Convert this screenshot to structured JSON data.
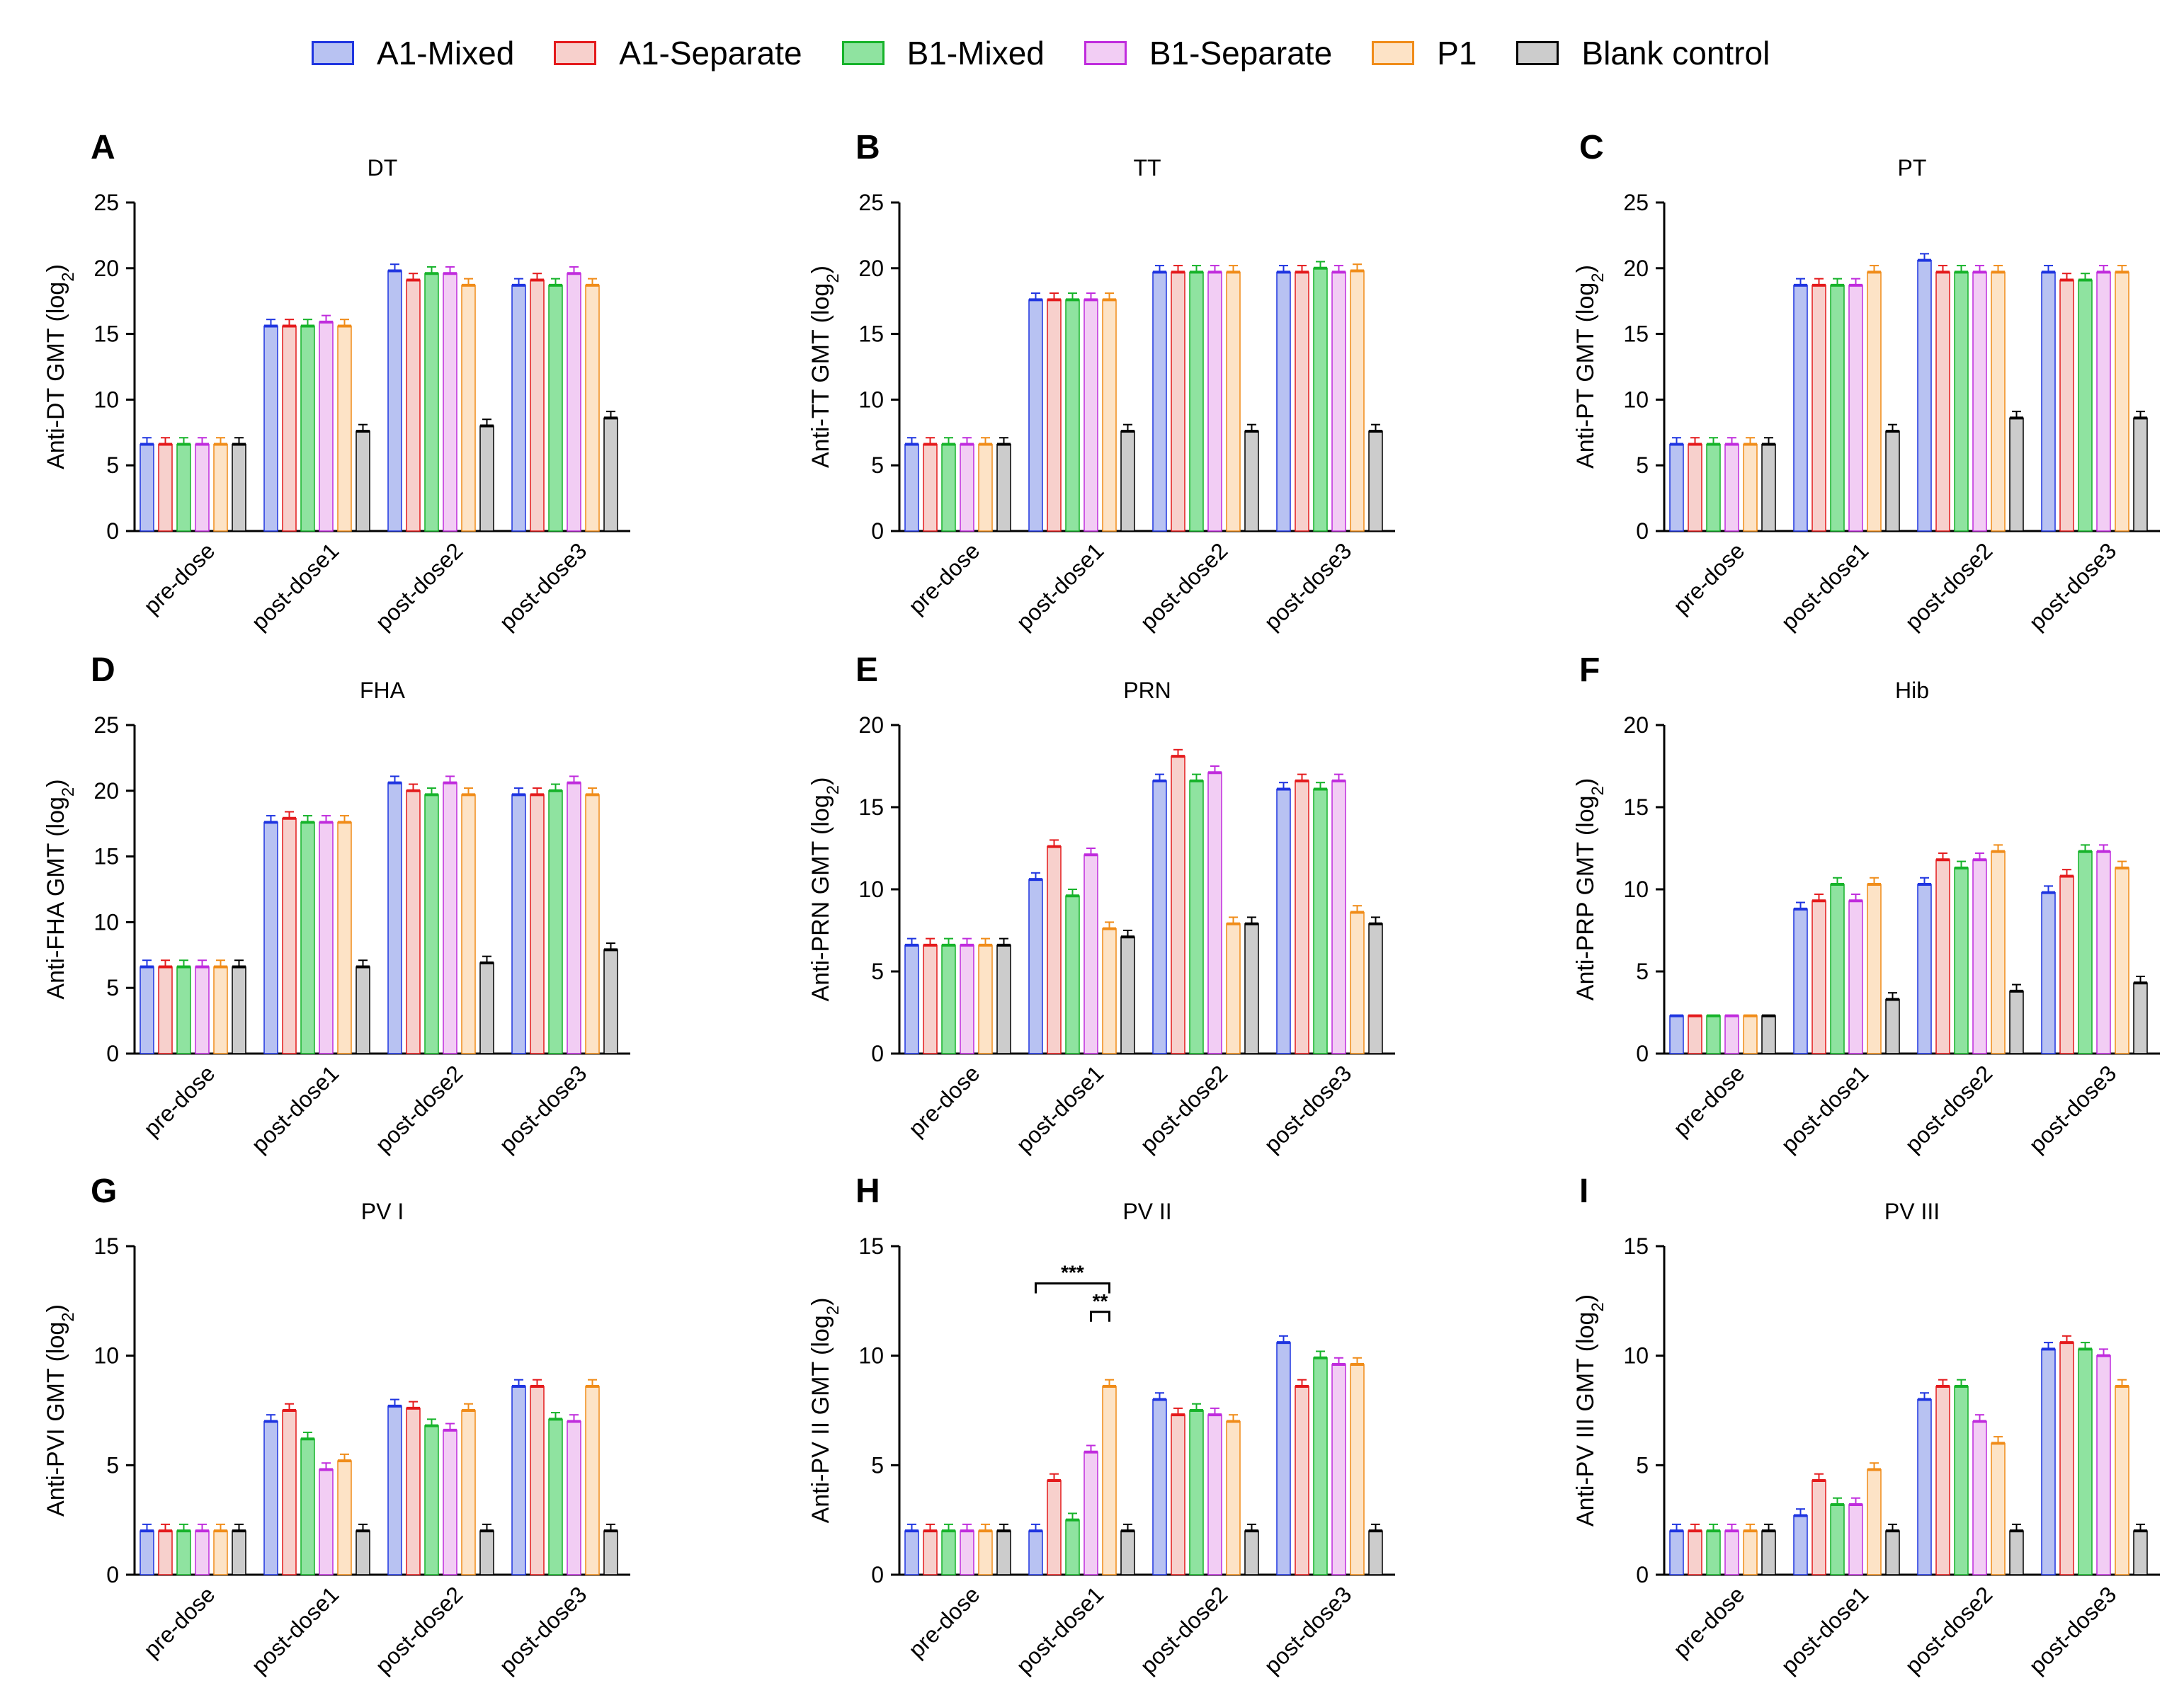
{
  "legend": {
    "groups": [
      "A1-Mixed",
      "A1-Separate",
      "B1-Mixed",
      "B1-Separate",
      "P1",
      "Blank control"
    ]
  },
  "colors": {
    "edge": [
      "#1f35e0",
      "#e41a1c",
      "#16b32a",
      "#c02cdd",
      "#f08c19",
      "#000000"
    ],
    "fill": [
      "#b8c2f2",
      "#f7d0cc",
      "#8fe3a0",
      "#f2cdf4",
      "#fde3c6",
      "#cccccc"
    ]
  },
  "chart_data": [
    {
      "panel": "A",
      "title": "DT",
      "type": "bar",
      "ylabel": "Anti-DT GMT (log2)",
      "ylim": [
        0,
        25
      ],
      "yticks": [
        0,
        5,
        10,
        15,
        20,
        25
      ],
      "categories": [
        "pre-dose",
        "post-dose1",
        "post-dose2",
        "post-dose3"
      ],
      "series": [
        {
          "name": "A1-Mixed",
          "values": [
            6.6,
            15.6,
            19.8,
            18.7
          ]
        },
        {
          "name": "A1-Separate",
          "values": [
            6.6,
            15.6,
            19.1,
            19.1
          ]
        },
        {
          "name": "B1-Mixed",
          "values": [
            6.6,
            15.6,
            19.6,
            18.7
          ]
        },
        {
          "name": "B1-Separate",
          "values": [
            6.6,
            15.9,
            19.6,
            19.6
          ]
        },
        {
          "name": "P1",
          "values": [
            6.6,
            15.6,
            18.7,
            18.7
          ]
        },
        {
          "name": "Blank control",
          "values": [
            6.6,
            7.6,
            8.0,
            8.6
          ]
        }
      ]
    },
    {
      "panel": "B",
      "title": "TT",
      "type": "bar",
      "ylabel": "Anti-TT GMT (log2)",
      "ylim": [
        0,
        25
      ],
      "yticks": [
        0,
        5,
        10,
        15,
        20,
        25
      ],
      "categories": [
        "pre-dose",
        "post-dose1",
        "post-dose2",
        "post-dose3"
      ],
      "series": [
        {
          "name": "A1-Mixed",
          "values": [
            6.6,
            17.6,
            19.7,
            19.7
          ]
        },
        {
          "name": "A1-Separate",
          "values": [
            6.6,
            17.6,
            19.7,
            19.7
          ]
        },
        {
          "name": "B1-Mixed",
          "values": [
            6.6,
            17.6,
            19.7,
            20.0
          ]
        },
        {
          "name": "B1-Separate",
          "values": [
            6.6,
            17.6,
            19.7,
            19.7
          ]
        },
        {
          "name": "P1",
          "values": [
            6.6,
            17.6,
            19.7,
            19.8
          ]
        },
        {
          "name": "Blank control",
          "values": [
            6.6,
            7.6,
            7.6,
            7.6
          ]
        }
      ]
    },
    {
      "panel": "C",
      "title": "PT",
      "type": "bar",
      "ylabel": "Anti-PT GMT (log2)",
      "ylim": [
        0,
        25
      ],
      "yticks": [
        0,
        5,
        10,
        15,
        20,
        25
      ],
      "categories": [
        "pre-dose",
        "post-dose1",
        "post-dose2",
        "post-dose3"
      ],
      "series": [
        {
          "name": "A1-Mixed",
          "values": [
            6.6,
            18.7,
            20.6,
            19.7
          ]
        },
        {
          "name": "A1-Separate",
          "values": [
            6.6,
            18.7,
            19.7,
            19.1
          ]
        },
        {
          "name": "B1-Mixed",
          "values": [
            6.6,
            18.7,
            19.7,
            19.1
          ]
        },
        {
          "name": "B1-Separate",
          "values": [
            6.6,
            18.7,
            19.7,
            19.7
          ]
        },
        {
          "name": "P1",
          "values": [
            6.6,
            19.7,
            19.7,
            19.7
          ]
        },
        {
          "name": "Blank control",
          "values": [
            6.6,
            7.6,
            8.6,
            8.6
          ]
        }
      ]
    },
    {
      "panel": "D",
      "title": "FHA",
      "type": "bar",
      "ylabel": "Anti-FHA GMT (log2)",
      "ylim": [
        0,
        25
      ],
      "yticks": [
        0,
        5,
        10,
        15,
        20,
        25
      ],
      "categories": [
        "pre-dose",
        "post-dose1",
        "post-dose2",
        "post-dose3"
      ],
      "series": [
        {
          "name": "A1-Mixed",
          "values": [
            6.6,
            17.6,
            20.6,
            19.7
          ]
        },
        {
          "name": "A1-Separate",
          "values": [
            6.6,
            17.9,
            20.0,
            19.7
          ]
        },
        {
          "name": "B1-Mixed",
          "values": [
            6.6,
            17.6,
            19.7,
            20.0
          ]
        },
        {
          "name": "B1-Separate",
          "values": [
            6.6,
            17.6,
            20.6,
            20.6
          ]
        },
        {
          "name": "P1",
          "values": [
            6.6,
            17.6,
            19.7,
            19.7
          ]
        },
        {
          "name": "Blank control",
          "values": [
            6.6,
            6.6,
            6.9,
            7.9
          ]
        }
      ]
    },
    {
      "panel": "E",
      "title": "PRN",
      "type": "bar",
      "ylabel": "Anti-PRN GMT (log2)",
      "ylim": [
        0,
        20
      ],
      "yticks": [
        0,
        5,
        10,
        15,
        20
      ],
      "categories": [
        "pre-dose",
        "post-dose1",
        "post-dose2",
        "post-dose3"
      ],
      "series": [
        {
          "name": "A1-Mixed",
          "values": [
            6.6,
            10.6,
            16.6,
            16.1
          ]
        },
        {
          "name": "A1-Separate",
          "values": [
            6.6,
            12.6,
            18.1,
            16.6
          ]
        },
        {
          "name": "B1-Mixed",
          "values": [
            6.6,
            9.6,
            16.6,
            16.1
          ]
        },
        {
          "name": "B1-Separate",
          "values": [
            6.6,
            12.1,
            17.1,
            16.6
          ]
        },
        {
          "name": "P1",
          "values": [
            6.6,
            7.6,
            7.9,
            8.6
          ]
        },
        {
          "name": "Blank control",
          "values": [
            6.6,
            7.1,
            7.9,
            7.9
          ]
        }
      ]
    },
    {
      "panel": "F",
      "title": "Hib",
      "type": "bar",
      "ylabel": "Anti-PRP GMT (log2)",
      "ylim": [
        0,
        20
      ],
      "yticks": [
        0,
        5,
        10,
        15,
        20
      ],
      "categories": [
        "pre-dose",
        "post-dose1",
        "post-dose2",
        "post-dose3"
      ],
      "series": [
        {
          "name": "A1-Mixed",
          "values": [
            2.3,
            8.8,
            10.3,
            9.8
          ]
        },
        {
          "name": "A1-Separate",
          "values": [
            2.3,
            9.3,
            11.8,
            10.8
          ]
        },
        {
          "name": "B1-Mixed",
          "values": [
            2.3,
            10.3,
            11.3,
            12.3
          ]
        },
        {
          "name": "B1-Separate",
          "values": [
            2.3,
            9.3,
            11.8,
            12.3
          ]
        },
        {
          "name": "P1",
          "values": [
            2.3,
            10.3,
            12.3,
            11.3
          ]
        },
        {
          "name": "Blank control",
          "values": [
            2.3,
            3.3,
            3.8,
            4.3
          ]
        }
      ]
    },
    {
      "panel": "G",
      "title": "PV I",
      "type": "bar",
      "ylabel": "Anti-PVI GMT (log2)",
      "ylim": [
        0,
        15
      ],
      "yticks": [
        0,
        5,
        10,
        15
      ],
      "categories": [
        "pre-dose",
        "post-dose1",
        "post-dose2",
        "post-dose3"
      ],
      "series": [
        {
          "name": "A1-Mixed",
          "values": [
            2.0,
            7.0,
            7.7,
            8.6
          ]
        },
        {
          "name": "A1-Separate",
          "values": [
            2.0,
            7.5,
            7.6,
            8.6
          ]
        },
        {
          "name": "B1-Mixed",
          "values": [
            2.0,
            6.2,
            6.8,
            7.1
          ]
        },
        {
          "name": "B1-Separate",
          "values": [
            2.0,
            4.8,
            6.6,
            7.0
          ]
        },
        {
          "name": "P1",
          "values": [
            2.0,
            5.2,
            7.5,
            8.6
          ]
        },
        {
          "name": "Blank control",
          "values": [
            2.0,
            2.0,
            2.0,
            2.0
          ]
        }
      ]
    },
    {
      "panel": "H",
      "title": "PV II",
      "type": "bar",
      "ylabel": "Anti-PV II GMT (log2)",
      "ylim": [
        0,
        15
      ],
      "yticks": [
        0,
        5,
        10,
        15
      ],
      "categories": [
        "pre-dose",
        "post-dose1",
        "post-dose2",
        "post-dose3"
      ],
      "series": [
        {
          "name": "A1-Mixed",
          "values": [
            2.0,
            2.0,
            8.0,
            10.6
          ]
        },
        {
          "name": "A1-Separate",
          "values": [
            2.0,
            4.3,
            7.3,
            8.6
          ]
        },
        {
          "name": "B1-Mixed",
          "values": [
            2.0,
            2.5,
            7.5,
            9.9
          ]
        },
        {
          "name": "B1-Separate",
          "values": [
            2.0,
            5.6,
            7.3,
            9.6
          ]
        },
        {
          "name": "P1",
          "values": [
            2.0,
            8.6,
            7.0,
            9.6
          ]
        },
        {
          "name": "Blank control",
          "values": [
            2.0,
            2.0,
            2.0,
            2.0
          ]
        }
      ],
      "annotations": [
        "***",
        "**"
      ]
    },
    {
      "panel": "I",
      "title": "PV III",
      "type": "bar",
      "ylabel": "Anti-PV III GMT (log2)",
      "ylim": [
        0,
        15
      ],
      "yticks": [
        0,
        5,
        10,
        15
      ],
      "categories": [
        "pre-dose",
        "post-dose1",
        "post-dose2",
        "post-dose3"
      ],
      "series": [
        {
          "name": "A1-Mixed",
          "values": [
            2.0,
            2.7,
            8.0,
            10.3
          ]
        },
        {
          "name": "A1-Separate",
          "values": [
            2.0,
            4.3,
            8.6,
            10.6
          ]
        },
        {
          "name": "B1-Mixed",
          "values": [
            2.0,
            3.2,
            8.6,
            10.3
          ]
        },
        {
          "name": "B1-Separate",
          "values": [
            2.0,
            3.2,
            7.0,
            10.0
          ]
        },
        {
          "name": "P1",
          "values": [
            2.0,
            4.8,
            6.0,
            8.6
          ]
        },
        {
          "name": "Blank control",
          "values": [
            2.0,
            2.0,
            2.0,
            2.0
          ]
        }
      ]
    }
  ]
}
